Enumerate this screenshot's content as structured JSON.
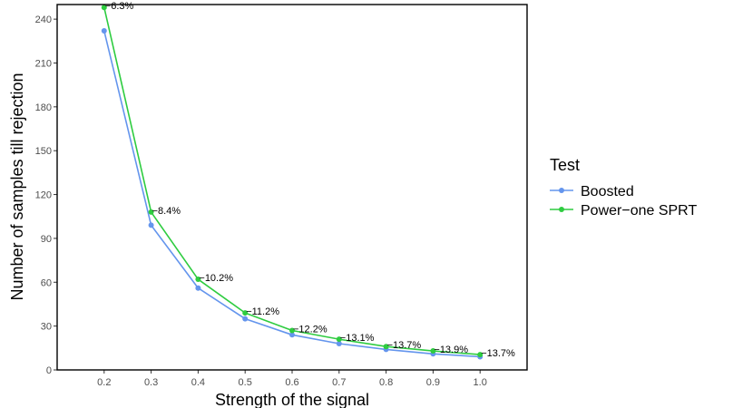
{
  "chart_data": {
    "type": "line",
    "xlabel": "Strength of the signal",
    "ylabel": "Number of samples till rejection",
    "x": [
      0.2,
      0.3,
      0.4,
      0.5,
      0.6,
      0.7,
      0.8,
      0.9,
      1.0
    ],
    "x_tick_labels": [
      "0.2",
      "0.3",
      "0.4",
      "0.5",
      "0.6",
      "0.7",
      "0.8",
      "0.9",
      "1.0"
    ],
    "y_ticks": [
      0,
      30,
      60,
      90,
      120,
      150,
      180,
      210,
      240
    ],
    "xlim": [
      0.1,
      1.1
    ],
    "ylim": [
      0,
      250
    ],
    "grid": false,
    "legend": {
      "title": "Test",
      "placement": "right"
    },
    "series": [
      {
        "name": "Boosted",
        "color": "#6495ED",
        "values": [
          232,
          99,
          56,
          35,
          24,
          18,
          14,
          11,
          9
        ]
      },
      {
        "name": "Power−one SPRT",
        "color": "#2ECC40",
        "values": [
          248,
          108,
          62,
          39,
          27,
          21,
          16,
          13,
          10.5
        ]
      }
    ],
    "annotations": [
      "−6.3%",
      "−8.4%",
      "−10.2%",
      "−11.2%",
      "−12.2%",
      "−13.1%",
      "−13.7%",
      "−13.9%",
      "−13.7%"
    ]
  }
}
